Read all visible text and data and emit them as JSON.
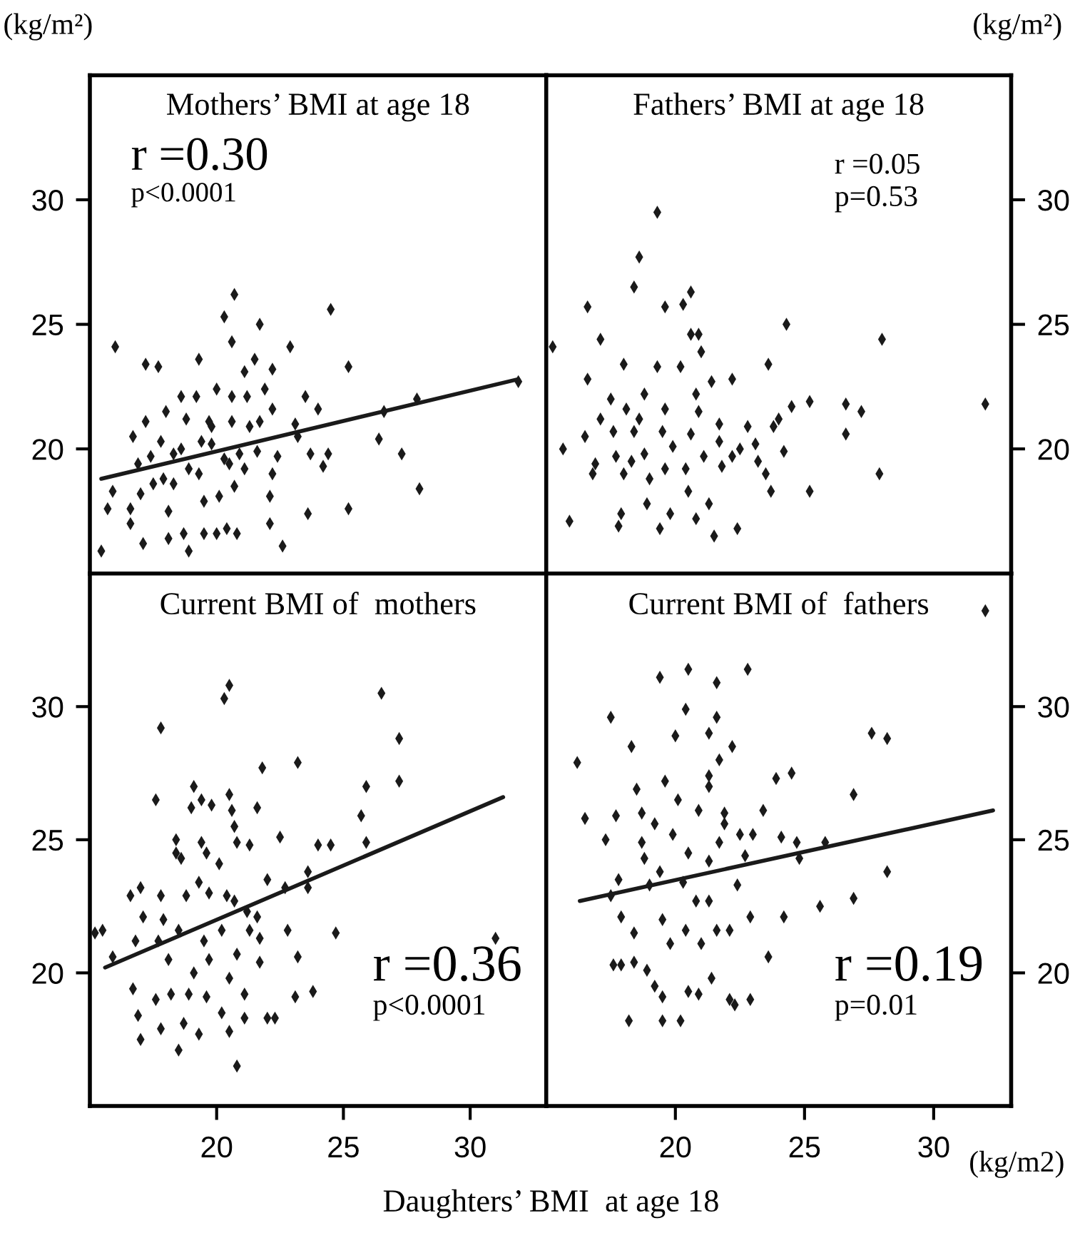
{
  "chart_data": [
    {
      "type": "scatter",
      "title": "Mothers’ BMI at age 18",
      "ylabel": "(kg/m²)",
      "annotations": [
        "r =0.30",
        "p<0.0001"
      ],
      "xlim": [
        15,
        33
      ],
      "xticks": [
        20,
        25,
        30
      ],
      "ylim": [
        15,
        35
      ],
      "yticks": [
        20,
        25,
        30
      ],
      "tick_labels": "y",
      "series": [
        {
          "color": "#1a1a1a",
          "marker": "diamond",
          "x": [
            15.45,
            16.0,
            15.9,
            15.7,
            17.2,
            17.7,
            17.1,
            16.6,
            16.6,
            16.7,
            17.2,
            17.0,
            18.0,
            17.5,
            17.9,
            18.1,
            18.1,
            18.9,
            18.7,
            18.6,
            18.8,
            18.6,
            18.3,
            19.3,
            19.2,
            19.5,
            19.5,
            19.3,
            19.7,
            19.8,
            20.0,
            20.1,
            20.0,
            20.3,
            20.6,
            20.7,
            20.6,
            20.6,
            20.5,
            20.7,
            20.8,
            20.4,
            21.1,
            21.2,
            20.9,
            21.1,
            21.5,
            21.7,
            21.6,
            21.7,
            21.3,
            21.9,
            22.2,
            22.2,
            22.1,
            22.1,
            22.4,
            22.2,
            22.6,
            22.9,
            23.1,
            23.2,
            23.5,
            23.7,
            23.6,
            24.0,
            24.2,
            24.4,
            24.5,
            25.2,
            25.2,
            26.4,
            26.6,
            27.3,
            27.9,
            28.0,
            31.9,
            16.9,
            17.4,
            17.8,
            18.3,
            18.9,
            19.4,
            19.8,
            20.3
          ],
          "values": [
            15.9,
            24.1,
            18.3,
            17.6,
            23.4,
            23.3,
            16.2,
            17.0,
            17.6,
            20.5,
            21.1,
            18.2,
            21.5,
            18.6,
            18.8,
            17.5,
            16.4,
            15.9,
            16.6,
            22.1,
            21.2,
            20.0,
            19.8,
            23.6,
            22.1,
            17.9,
            16.6,
            19.0,
            21.1,
            20.2,
            22.4,
            18.1,
            16.6,
            25.3,
            24.3,
            26.2,
            22.1,
            21.1,
            19.4,
            18.5,
            16.6,
            16.8,
            23.1,
            22.1,
            19.8,
            19.2,
            23.6,
            25.0,
            19.9,
            21.1,
            20.9,
            22.4,
            23.2,
            21.6,
            18.1,
            17.0,
            19.7,
            19.0,
            16.1,
            24.1,
            21.0,
            20.5,
            22.1,
            19.8,
            17.4,
            21.6,
            19.3,
            19.8,
            25.6,
            17.6,
            23.3,
            20.4,
            21.5,
            19.8,
            22.0,
            18.4,
            22.7,
            19.4,
            19.7,
            20.3,
            18.6,
            19.2,
            20.3,
            20.9,
            19.6
          ]
        },
        {
          "type": "line",
          "color": "#1a1a1a",
          "line_style": "solid",
          "x": [
            15.45,
            31.9
          ],
          "values": [
            18.8,
            22.8
          ]
        }
      ]
    },
    {
      "type": "scatter",
      "title": "Fathers’ BMI at age 18",
      "y2label": "(kg/m²)",
      "annotations": [
        "r =0.05",
        "p=0.53"
      ],
      "xlim": [
        15,
        33
      ],
      "xticks": [
        20,
        25,
        30
      ],
      "y2lim": [
        15,
        35
      ],
      "y2ticks": [
        20,
        25,
        30
      ],
      "tick_labels": "y",
      "series": [
        {
          "color": "#1a1a1a",
          "marker": "diamond",
          "axis": "y2",
          "x": [
            15.25,
            15.65,
            15.9,
            16.6,
            16.6,
            17.1,
            16.5,
            16.8,
            16.9,
            17.1,
            17.5,
            17.6,
            17.7,
            17.9,
            17.8,
            18.0,
            18.1,
            18.0,
            18.4,
            18.6,
            18.4,
            18.3,
            18.6,
            18.8,
            18.8,
            18.9,
            19.0,
            19.3,
            19.4,
            19.3,
            19.5,
            19.6,
            19.6,
            19.6,
            19.8,
            19.9,
            20.2,
            20.3,
            20.6,
            20.4,
            20.5,
            20.6,
            20.8,
            20.9,
            20.6,
            21.0,
            20.8,
            20.9,
            21.1,
            21.3,
            21.4,
            21.5,
            21.7,
            21.7,
            21.8,
            22.2,
            22.2,
            22.4,
            22.5,
            22.8,
            23.1,
            23.2,
            23.5,
            23.6,
            23.7,
            23.8,
            24.0,
            24.2,
            24.3,
            24.5,
            25.2,
            25.2,
            26.6,
            26.6,
            27.2,
            27.9,
            28.0,
            32.0
          ],
          "values": [
            24.1,
            20.0,
            17.1,
            25.7,
            22.8,
            24.4,
            20.5,
            19.0,
            19.4,
            21.2,
            22.0,
            20.7,
            19.7,
            17.4,
            16.9,
            23.4,
            21.6,
            19.0,
            26.5,
            27.7,
            20.7,
            19.5,
            21.2,
            22.2,
            19.8,
            17.8,
            18.8,
            29.5,
            16.8,
            23.3,
            20.7,
            21.6,
            25.7,
            19.2,
            17.4,
            20.1,
            23.3,
            25.8,
            26.3,
            19.2,
            18.3,
            20.6,
            17.2,
            24.6,
            24.6,
            23.9,
            22.2,
            21.5,
            19.7,
            17.8,
            22.7,
            16.5,
            21.0,
            20.3,
            19.3,
            22.8,
            19.7,
            16.8,
            20.0,
            20.9,
            20.2,
            19.5,
            19.0,
            23.4,
            18.3,
            20.9,
            21.2,
            19.9,
            25.0,
            21.7,
            21.9,
            18.3,
            21.8,
            20.6,
            21.5,
            19.0,
            24.4,
            21.8
          ]
        }
      ]
    },
    {
      "type": "scatter",
      "title": "Current BMI of  mothers",
      "xlabel": "Daughters’ BMI  at age 18",
      "annotations": [
        "r =0.36",
        "p<0.0001"
      ],
      "xlim": [
        15,
        33
      ],
      "xticks": [
        20,
        25,
        30
      ],
      "ylim": [
        15,
        35
      ],
      "yticks": [
        20,
        25,
        30
      ],
      "series": [
        {
          "color": "#1a1a1a",
          "marker": "diamond",
          "x": [
            15.2,
            15.5,
            15.9,
            16.6,
            17.0,
            16.7,
            16.9,
            17.0,
            16.8,
            17.1,
            17.6,
            17.8,
            17.8,
            17.9,
            17.7,
            17.6,
            17.8,
            18.1,
            18.2,
            18.4,
            18.4,
            18.5,
            18.6,
            18.7,
            18.5,
            18.8,
            19.0,
            19.1,
            18.9,
            19.1,
            19.3,
            19.4,
            19.4,
            19.3,
            19.5,
            19.6,
            19.7,
            19.8,
            19.6,
            19.7,
            20.1,
            20.2,
            20.3,
            20.5,
            20.4,
            20.2,
            20.5,
            20.6,
            20.5,
            20.5,
            20.7,
            20.8,
            20.8,
            20.7,
            20.8,
            21.1,
            21.1,
            21.2,
            21.3,
            21.3,
            21.6,
            21.6,
            21.7,
            21.7,
            21.8,
            22.0,
            22.0,
            22.3,
            22.5,
            22.7,
            22.8,
            23.1,
            23.2,
            23.2,
            23.6,
            23.6,
            23.8,
            24.0,
            24.5,
            24.7,
            25.7,
            25.9,
            25.9,
            26.5,
            27.2,
            27.2,
            31.0
          ],
          "values": [
            21.5,
            21.6,
            20.6,
            22.9,
            23.2,
            19.4,
            18.4,
            17.5,
            21.2,
            22.1,
            26.5,
            29.2,
            22.9,
            22.0,
            21.2,
            19.0,
            17.9,
            20.5,
            19.2,
            24.5,
            25.0,
            17.1,
            24.3,
            18.1,
            21.6,
            22.9,
            26.2,
            27.0,
            19.2,
            20.0,
            17.7,
            24.9,
            26.5,
            23.4,
            21.2,
            24.5,
            23.0,
            26.3,
            19.1,
            20.5,
            24.1,
            18.5,
            30.3,
            30.8,
            22.9,
            21.6,
            26.7,
            26.1,
            19.8,
            17.8,
            25.5,
            16.5,
            24.9,
            22.7,
            20.7,
            19.2,
            18.3,
            22.3,
            21.6,
            24.8,
            26.2,
            22.1,
            21.3,
            20.4,
            27.7,
            23.5,
            18.3,
            18.3,
            25.1,
            23.2,
            21.6,
            19.1,
            27.9,
            20.6,
            23.8,
            23.2,
            19.3,
            24.8,
            24.8,
            21.5,
            25.9,
            27.0,
            24.9,
            30.5,
            28.8,
            27.2,
            21.3
          ]
        },
        {
          "type": "line",
          "color": "#1a1a1a",
          "line_style": "solid",
          "x": [
            15.6,
            31.3
          ],
          "values": [
            20.2,
            26.6
          ]
        }
      ]
    },
    {
      "type": "scatter",
      "title": "Current BMI of  fathers",
      "annotations": [
        "r =0.19",
        "p=0.01",
        "(kg/m2)"
      ],
      "xlim": [
        15,
        33
      ],
      "xticks": [
        20,
        25,
        30
      ],
      "y2lim": [
        15,
        35
      ],
      "y2ticks": [
        20,
        25,
        30
      ],
      "series": [
        {
          "color": "#1a1a1a",
          "marker": "diamond",
          "axis": "y2",
          "x": [
            16.2,
            16.5,
            17.5,
            17.3,
            17.7,
            17.5,
            17.6,
            17.8,
            17.9,
            17.9,
            18.2,
            18.3,
            18.4,
            18.4,
            18.5,
            18.7,
            18.7,
            18.8,
            18.9,
            19.0,
            19.2,
            19.2,
            19.4,
            19.4,
            19.5,
            19.5,
            19.5,
            19.6,
            19.9,
            19.8,
            20.0,
            20.1,
            20.2,
            20.3,
            20.4,
            20.4,
            20.5,
            20.5,
            20.5,
            20.9,
            20.9,
            20.8,
            21.0,
            21.3,
            21.3,
            21.3,
            21.3,
            21.3,
            21.4,
            21.6,
            21.6,
            21.7,
            21.7,
            21.6,
            21.9,
            21.9,
            22.1,
            22.1,
            22.2,
            22.3,
            22.4,
            22.5,
            22.7,
            22.8,
            22.9,
            22.9,
            23.0,
            23.4,
            23.6,
            23.9,
            24.1,
            24.2,
            24.5,
            24.7,
            24.8,
            25.6,
            25.8,
            26.9,
            26.9,
            27.6,
            28.2,
            28.2,
            32.0
          ],
          "values": [
            27.9,
            25.8,
            29.6,
            25.0,
            25.9,
            22.9,
            20.3,
            23.5,
            22.1,
            20.3,
            18.2,
            28.5,
            21.5,
            20.4,
            26.9,
            24.9,
            26.0,
            24.3,
            20.1,
            23.3,
            19.5,
            25.6,
            31.1,
            23.8,
            22.0,
            19.1,
            18.2,
            27.2,
            25.2,
            21.1,
            28.9,
            26.5,
            18.2,
            23.4,
            21.6,
            29.9,
            31.4,
            24.5,
            19.3,
            19.2,
            26.1,
            22.7,
            21.1,
            29.0,
            27.4,
            24.2,
            27.0,
            22.7,
            19.8,
            30.9,
            29.6,
            28.0,
            24.9,
            21.6,
            26.0,
            25.6,
            21.6,
            19.0,
            28.5,
            18.8,
            23.3,
            25.2,
            24.4,
            31.4,
            22.1,
            19.0,
            25.2,
            26.1,
            20.6,
            27.3,
            25.1,
            22.1,
            27.5,
            24.9,
            24.3,
            22.5,
            24.9,
            26.7,
            22.8,
            29.0,
            28.8,
            23.8,
            33.6
          ]
        },
        {
          "type": "line",
          "color": "#1a1a1a",
          "line_style": "solid",
          "axis": "y2",
          "x": [
            16.3,
            32.3
          ],
          "values": [
            22.7,
            26.1
          ]
        }
      ]
    }
  ]
}
